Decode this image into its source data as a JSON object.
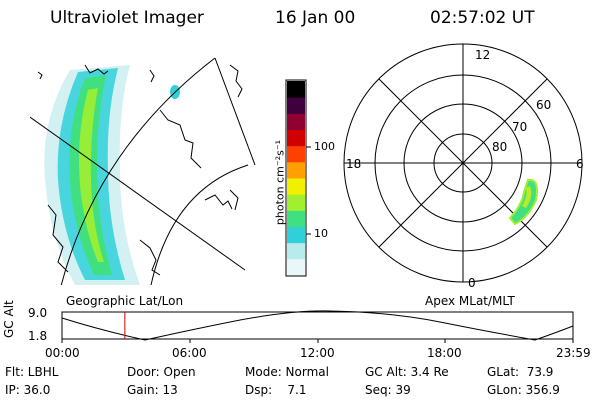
{
  "header": {
    "instrument": "Ultraviolet Imager",
    "date": "16 Jan 00",
    "time": "02:57:02 UT"
  },
  "colorbar": {
    "unit_label": "photon cm⁻²s⁻¹",
    "ticks": [
      "100",
      "10"
    ]
  },
  "polar_plot": {
    "mlt_labels": {
      "top": "12",
      "left": "18",
      "right": "6",
      "bottom": "0"
    },
    "lat_labels": [
      "60",
      "70",
      "80"
    ]
  },
  "map_label": "Geographic Lat/Lon",
  "polar_label": "Apex MLat/MLT",
  "timeline": {
    "ylabel": "GC Alt",
    "yticks": [
      "9.0",
      "1.8"
    ],
    "xticks": [
      "00:00",
      "06:00",
      "12:00",
      "18:00",
      "23:59"
    ],
    "current_time_fraction": 0.123
  },
  "info": {
    "flt": "Flt: LBHL",
    "door": "Door: Open",
    "mode": "Mode: Normal",
    "gc_alt": "GC Alt: 3.4 Re",
    "glat": "GLat:  73.9",
    "ip": "IP: 36.0",
    "gain": "Gain: 13",
    "dsp": "Dsp:    7.1",
    "seq": "Seq: 39",
    "glon": "GLon: 356.9"
  },
  "colors": {
    "scale": [
      "#e8f8f8",
      "#b8ecec",
      "#30d0d8",
      "#40e080",
      "#a0f030",
      "#f0f000",
      "#ffa000",
      "#ff4000",
      "#d00000",
      "#900030",
      "#400040",
      "#000000"
    ]
  }
}
